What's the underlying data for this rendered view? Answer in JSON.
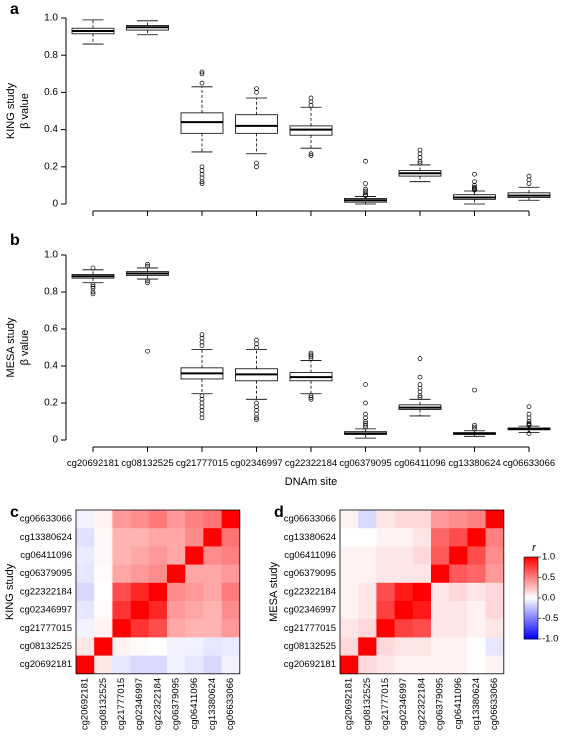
{
  "chart_data": [
    {
      "type": "boxplot",
      "panel": "a",
      "ylabel": [
        "KING study",
        "β value"
      ],
      "ylim": [
        0,
        1
      ],
      "yticks": [
        "0",
        "0.2",
        "0.4",
        "0.6",
        "0.8",
        "1.0"
      ],
      "categories": [
        "cg20692181",
        "cg08132525",
        "cg21777015",
        "cg02346997",
        "cg22322184",
        "cg06379095",
        "cg06411096",
        "cg13380624",
        "cg06633066"
      ],
      "series": [
        {
          "min": 0.86,
          "q1": 0.915,
          "median": 0.93,
          "q3": 0.945,
          "max": 0.99,
          "outliers": []
        },
        {
          "min": 0.91,
          "q1": 0.935,
          "median": 0.95,
          "q3": 0.96,
          "max": 0.985,
          "outliers": []
        },
        {
          "min": 0.28,
          "q1": 0.38,
          "median": 0.44,
          "q3": 0.49,
          "max": 0.63,
          "outliers": [
            0.71,
            0.7,
            0.65,
            0.2,
            0.18,
            0.16,
            0.14,
            0.12,
            0.11
          ]
        },
        {
          "min": 0.27,
          "q1": 0.38,
          "median": 0.42,
          "q3": 0.48,
          "max": 0.57,
          "outliers": [
            0.62,
            0.6,
            0.22,
            0.2
          ]
        },
        {
          "min": 0.3,
          "q1": 0.37,
          "median": 0.4,
          "q3": 0.42,
          "max": 0.52,
          "outliers": [
            0.57,
            0.55,
            0.53,
            0.27,
            0.26
          ]
        },
        {
          "min": 0.0,
          "q1": 0.01,
          "median": 0.02,
          "q3": 0.03,
          "max": 0.04,
          "outliers": [
            0.23,
            0.11,
            0.08,
            0.07,
            0.06,
            0.05,
            0.045
          ]
        },
        {
          "min": 0.12,
          "q1": 0.15,
          "median": 0.165,
          "q3": 0.18,
          "max": 0.21,
          "outliers": [
            0.29,
            0.27,
            0.25,
            0.23,
            0.22
          ]
        },
        {
          "min": 0.0,
          "q1": 0.025,
          "median": 0.035,
          "q3": 0.05,
          "max": 0.07,
          "outliers": [
            0.16,
            0.12,
            0.1,
            0.09,
            0.085,
            0.08,
            0.075
          ]
        },
        {
          "min": 0.02,
          "q1": 0.035,
          "median": 0.045,
          "q3": 0.06,
          "max": 0.09,
          "outliers": [
            0.15,
            0.13,
            0.11
          ]
        }
      ]
    },
    {
      "type": "boxplot",
      "panel": "b",
      "ylabel": [
        "MESA study",
        "β value"
      ],
      "xlabel": "DNAm site",
      "ylim": [
        0,
        1
      ],
      "yticks": [
        "0",
        "0.2",
        "0.4",
        "0.6",
        "0.8",
        "1.0"
      ],
      "categories": [
        "cg20692181",
        "cg08132525",
        "cg21777015",
        "cg02346997",
        "cg22322184",
        "cg06379095",
        "cg06411096",
        "cg13380624",
        "cg06633066"
      ],
      "series": [
        {
          "min": 0.85,
          "q1": 0.875,
          "median": 0.885,
          "q3": 0.895,
          "max": 0.92,
          "outliers": [
            0.93,
            0.84,
            0.83,
            0.82,
            0.8,
            0.79
          ]
        },
        {
          "min": 0.87,
          "q1": 0.89,
          "median": 0.9,
          "q3": 0.91,
          "max": 0.93,
          "outliers": [
            0.95,
            0.94,
            0.86,
            0.85,
            0.48
          ]
        },
        {
          "min": 0.25,
          "q1": 0.33,
          "median": 0.36,
          "q3": 0.39,
          "max": 0.49,
          "outliers": [
            0.57,
            0.55,
            0.53,
            0.51,
            0.24,
            0.22,
            0.2,
            0.18,
            0.16,
            0.14,
            0.12
          ]
        },
        {
          "min": 0.22,
          "q1": 0.32,
          "median": 0.355,
          "q3": 0.385,
          "max": 0.49,
          "outliers": [
            0.54,
            0.52,
            0.5,
            0.2,
            0.18,
            0.16,
            0.14,
            0.12,
            0.11
          ]
        },
        {
          "min": 0.25,
          "q1": 0.32,
          "median": 0.34,
          "q3": 0.365,
          "max": 0.43,
          "outliers": [
            0.47,
            0.46,
            0.45,
            0.44,
            0.24,
            0.23,
            0.22
          ]
        },
        {
          "min": 0.01,
          "q1": 0.03,
          "median": 0.035,
          "q3": 0.045,
          "max": 0.06,
          "outliers": [
            0.3,
            0.2,
            0.14,
            0.12,
            0.1,
            0.09,
            0.08,
            0.07
          ]
        },
        {
          "min": 0.13,
          "q1": 0.165,
          "median": 0.175,
          "q3": 0.19,
          "max": 0.22,
          "outliers": [
            0.44,
            0.34,
            0.3,
            0.28,
            0.26,
            0.24,
            0.23
          ]
        },
        {
          "min": 0.02,
          "q1": 0.03,
          "median": 0.035,
          "q3": 0.04,
          "max": 0.05,
          "outliers": [
            0.27,
            0.08,
            0.07,
            0.06
          ]
        },
        {
          "min": 0.04,
          "q1": 0.055,
          "median": 0.06,
          "q3": 0.065,
          "max": 0.075,
          "outliers": [
            0.18,
            0.14,
            0.12,
            0.1,
            0.09,
            0.085,
            0.08,
            0.035
          ]
        }
      ]
    },
    {
      "type": "heatmap",
      "panel": "c",
      "ylabel": "KING study",
      "rows_top_to_bottom": [
        "cg06633066",
        "cg13380624",
        "cg06411096",
        "cg06379095",
        "cg22322184",
        "cg02346997",
        "cg21777015",
        "cg08132525",
        "cg20692181"
      ],
      "columns": [
        "cg20692181",
        "cg08132525",
        "cg21777015",
        "cg02346997",
        "cg22322184",
        "cg06379095",
        "cg06411096",
        "cg13380624",
        "cg06633066"
      ],
      "values": [
        [
          -0.05,
          0.05,
          0.4,
          0.45,
          0.52,
          0.4,
          0.5,
          0.55,
          1.0
        ],
        [
          -0.12,
          0.03,
          0.3,
          0.3,
          0.35,
          0.35,
          0.45,
          1.0,
          0.55
        ],
        [
          -0.08,
          0.03,
          0.3,
          0.35,
          0.4,
          0.35,
          1.0,
          0.45,
          0.5
        ],
        [
          -0.1,
          0.02,
          0.35,
          0.4,
          0.45,
          1.0,
          0.35,
          0.35,
          0.4
        ],
        [
          -0.15,
          0.0,
          0.7,
          0.85,
          1.0,
          0.45,
          0.4,
          0.35,
          0.52
        ],
        [
          -0.1,
          0.02,
          0.8,
          1.0,
          0.85,
          0.4,
          0.35,
          0.3,
          0.45
        ],
        [
          -0.05,
          0.05,
          1.0,
          0.8,
          0.7,
          0.35,
          0.3,
          0.3,
          0.4
        ],
        [
          0.1,
          1.0,
          0.05,
          0.02,
          0.0,
          -0.05,
          -0.05,
          -0.1,
          -0.08
        ],
        [
          1.0,
          0.1,
          -0.1,
          -0.15,
          -0.15,
          -0.05,
          -0.1,
          -0.15,
          -0.05
        ]
      ]
    },
    {
      "type": "heatmap",
      "panel": "d",
      "ylabel": "MESA study",
      "rows_top_to_bottom": [
        "cg06633066",
        "cg13380624",
        "cg06411096",
        "cg06379095",
        "cg22322184",
        "cg02346997",
        "cg21777015",
        "cg08132525",
        "cg20692181"
      ],
      "columns": [
        "cg20692181",
        "cg08132525",
        "cg21777015",
        "cg02346997",
        "cg22322184",
        "cg06379095",
        "cg06411096",
        "cg13380624",
        "cg06633066"
      ],
      "values": [
        [
          0.05,
          -0.15,
          0.1,
          0.15,
          0.15,
          0.4,
          0.45,
          0.5,
          1.0
        ],
        [
          0.0,
          0.0,
          0.05,
          0.05,
          0.1,
          0.6,
          0.7,
          1.0,
          0.5
        ],
        [
          0.05,
          0.05,
          0.1,
          0.1,
          0.15,
          0.65,
          1.0,
          0.7,
          0.45
        ],
        [
          0.05,
          0.05,
          0.1,
          0.1,
          0.1,
          1.0,
          0.65,
          0.6,
          0.4
        ],
        [
          0.05,
          0.1,
          0.7,
          0.9,
          1.0,
          0.1,
          0.15,
          0.1,
          0.15
        ],
        [
          0.05,
          0.1,
          0.75,
          1.0,
          0.9,
          0.1,
          0.1,
          0.05,
          0.15
        ],
        [
          0.1,
          0.15,
          1.0,
          0.75,
          0.7,
          0.1,
          0.1,
          0.05,
          0.1
        ],
        [
          0.15,
          1.0,
          0.15,
          0.1,
          0.1,
          0.05,
          0.05,
          0.0,
          -0.1
        ],
        [
          1.0,
          0.15,
          0.1,
          0.05,
          0.05,
          0.05,
          0.05,
          0.0,
          0.05
        ]
      ],
      "colorbar": {
        "label": "r",
        "ticks": [
          "1.0",
          "0.5",
          "0.0",
          "-0.5",
          "-1.0"
        ],
        "range": [
          -1,
          1
        ]
      }
    }
  ]
}
